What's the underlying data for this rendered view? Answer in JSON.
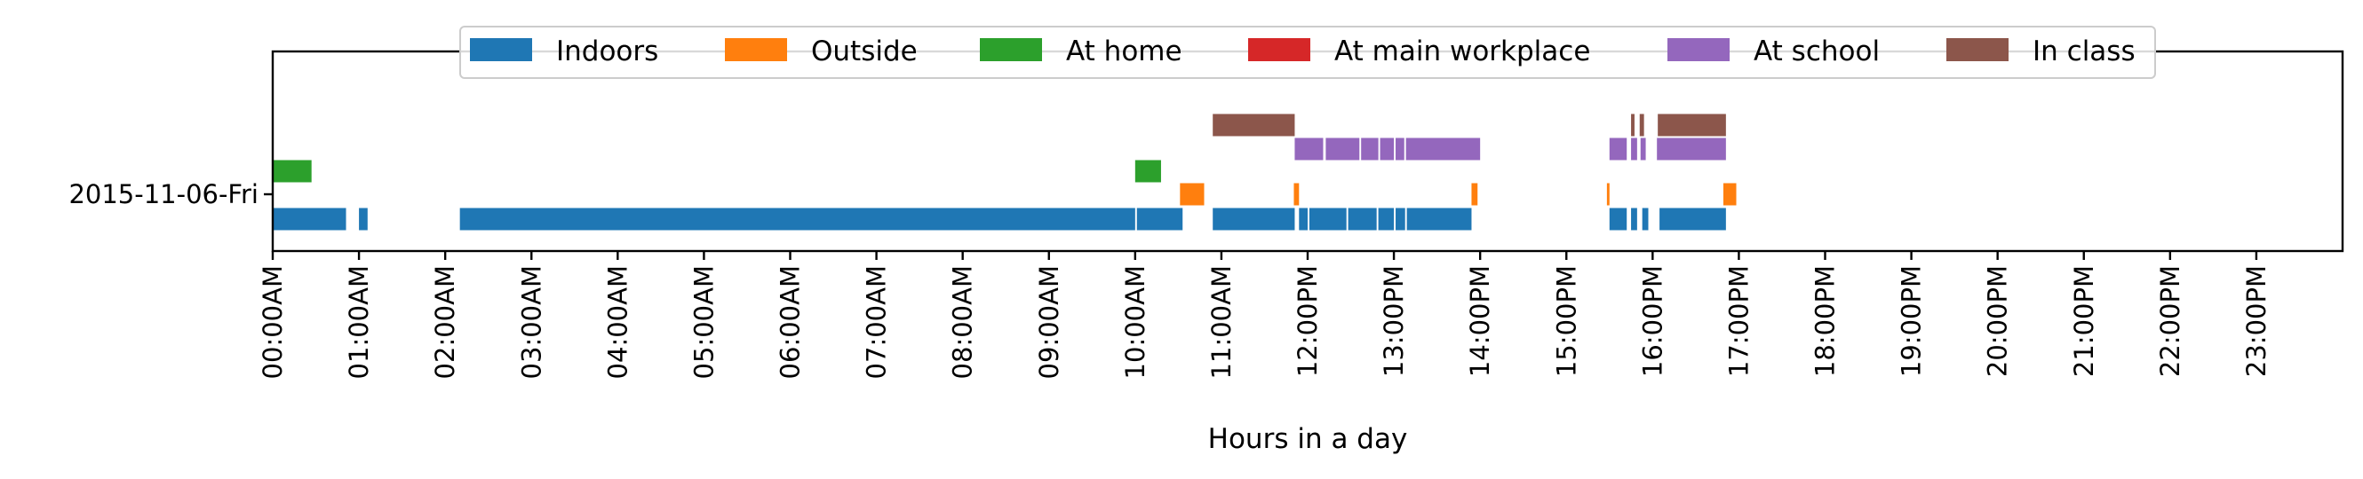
{
  "chart_data": {
    "type": "timeline",
    "xlabel": "Hours in a day",
    "xlim": [
      0,
      24
    ],
    "x_ticks": [
      "00:00AM",
      "01:00AM",
      "02:00AM",
      "03:00AM",
      "04:00AM",
      "05:00AM",
      "06:00AM",
      "07:00AM",
      "08:00AM",
      "09:00AM",
      "10:00AM",
      "11:00AM",
      "12:00PM",
      "13:00PM",
      "14:00PM",
      "15:00PM",
      "16:00PM",
      "17:00PM",
      "18:00PM",
      "19:00PM",
      "20:00PM",
      "21:00PM",
      "22:00PM",
      "23:00PM"
    ],
    "y_categories": [
      "2015-11-06-Fri"
    ],
    "legend_position": "top-center",
    "grid": false,
    "series": [
      {
        "name": "Indoors",
        "color": "#1f77b4",
        "lane": 0,
        "intervals": [
          [
            0.0,
            0.85
          ],
          [
            1.0,
            1.1
          ],
          [
            2.17,
            10.0
          ],
          [
            10.02,
            10.55
          ],
          [
            10.9,
            11.85
          ],
          [
            11.9,
            12.0
          ],
          [
            12.02,
            12.45
          ],
          [
            12.47,
            12.8
          ],
          [
            12.82,
            13.0
          ],
          [
            13.02,
            13.13
          ],
          [
            13.15,
            13.9
          ],
          [
            15.5,
            15.7
          ],
          [
            15.75,
            15.82
          ],
          [
            15.88,
            15.95
          ],
          [
            16.08,
            16.85
          ]
        ]
      },
      {
        "name": "Outside",
        "color": "#ff7f0e",
        "lane": 1,
        "intervals": [
          [
            10.52,
            10.8
          ],
          [
            11.84,
            11.9
          ],
          [
            13.9,
            13.97
          ],
          [
            15.47,
            15.5
          ],
          [
            16.82,
            16.97
          ]
        ]
      },
      {
        "name": "At home",
        "color": "#2ca02c",
        "lane": 2,
        "intervals": [
          [
            0.0,
            0.45
          ],
          [
            10.0,
            10.3
          ]
        ]
      },
      {
        "name": "At main workplace",
        "color": "#d62728",
        "lane": 3,
        "intervals": []
      },
      {
        "name": "At school",
        "color": "#9467bd",
        "lane": 4,
        "intervals": [
          [
            11.85,
            12.18
          ],
          [
            12.21,
            12.6
          ],
          [
            12.62,
            12.82
          ],
          [
            12.84,
            13.0
          ],
          [
            13.02,
            13.12
          ],
          [
            13.14,
            14.0
          ],
          [
            15.5,
            15.7
          ],
          [
            15.75,
            15.82
          ],
          [
            15.86,
            15.92
          ],
          [
            16.05,
            16.85
          ]
        ]
      },
      {
        "name": "In class",
        "color": "#8c564b",
        "lane": 5,
        "intervals": [
          [
            10.9,
            11.85
          ],
          [
            15.75,
            15.79
          ],
          [
            15.85,
            15.9
          ],
          [
            16.06,
            16.85
          ]
        ]
      }
    ]
  }
}
